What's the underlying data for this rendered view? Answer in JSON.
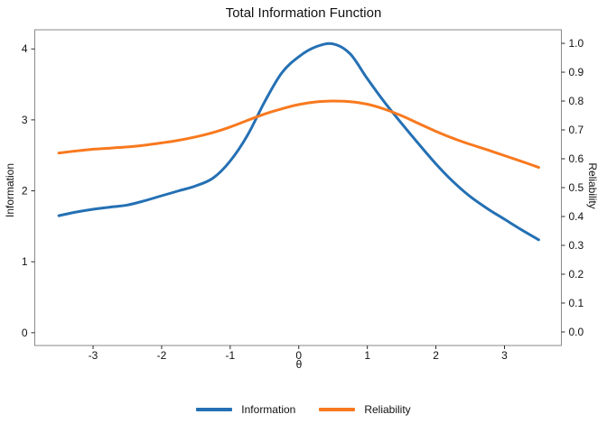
{
  "chart_data": {
    "type": "line",
    "title": "Total Information Function",
    "xlabel": "θ",
    "ylabel_left": "Information",
    "ylabel_right": "Reliability",
    "x": [
      -3.5,
      -3.25,
      -3.0,
      -2.75,
      -2.5,
      -2.25,
      -2.0,
      -1.75,
      -1.5,
      -1.25,
      -1.0,
      -0.75,
      -0.5,
      -0.25,
      0.0,
      0.25,
      0.5,
      0.75,
      1.0,
      1.25,
      1.5,
      1.75,
      2.0,
      2.25,
      2.5,
      2.75,
      3.0,
      3.25,
      3.5
    ],
    "series": [
      {
        "name": "Information",
        "axis": "left",
        "color": "#2470B4",
        "values": [
          1.65,
          1.7,
          1.74,
          1.77,
          1.8,
          1.86,
          1.93,
          2.0,
          2.07,
          2.18,
          2.42,
          2.78,
          3.25,
          3.66,
          3.89,
          4.03,
          4.07,
          3.93,
          3.58,
          3.25,
          2.95,
          2.66,
          2.38,
          2.13,
          1.92,
          1.75,
          1.6,
          1.45,
          1.31
        ]
      },
      {
        "name": "Reliability",
        "axis": "right",
        "color": "#F8791F",
        "values": [
          0.62,
          0.627,
          0.633,
          0.637,
          0.641,
          0.647,
          0.655,
          0.664,
          0.676,
          0.691,
          0.71,
          0.733,
          0.755,
          0.773,
          0.788,
          0.797,
          0.8,
          0.798,
          0.789,
          0.772,
          0.749,
          0.722,
          0.695,
          0.671,
          0.65,
          0.631,
          0.611,
          0.591,
          0.57
        ]
      }
    ],
    "xlim": [
      -3.85,
      3.83
    ],
    "ylim_left": [
      -0.18,
      4.27
    ],
    "ylim_right": [
      -0.047,
      1.047
    ],
    "xticks": [
      -3,
      -2,
      -1,
      0,
      1,
      2,
      3
    ],
    "yticks_left": [
      0,
      1,
      2,
      3,
      4
    ],
    "yticks_right": [
      "0.0",
      "0.1",
      "0.2",
      "0.3",
      "0.4",
      "0.5",
      "0.6",
      "0.7",
      "0.8",
      "0.9",
      "1.0"
    ],
    "grid": false,
    "legend_position": "bottom-center",
    "panel_border_color": "#8a8a8a",
    "tick_color": "#2b2b2b",
    "tick_label_color": "#111111",
    "line_width": 3
  }
}
